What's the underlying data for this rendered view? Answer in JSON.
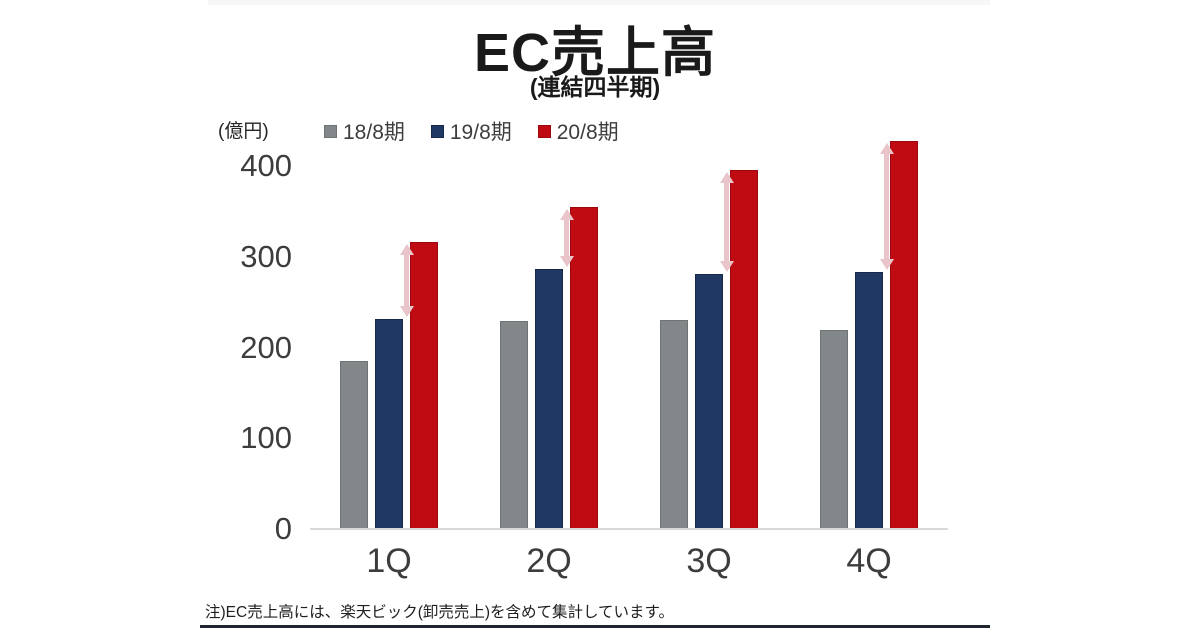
{
  "slide": {
    "title": "EC売上高",
    "subtitle": "(連結四半期)",
    "unit_label": "(億円)",
    "note": "注)EC売上高には、楽天ビック(卸売売上)を含めて集計しています。"
  },
  "colors": {
    "background": "#ffffff",
    "top_strip": "#f7f7f7",
    "title_text": "#1a1a1a",
    "tick_text": "#3d3d3d",
    "axis_line": "#d9d9d9",
    "bottom_rule": "#20242e"
  },
  "chart_data": {
    "type": "bar",
    "title": "EC売上高(連結四半期)",
    "categories": [
      "1Q",
      "2Q",
      "3Q",
      "4Q"
    ],
    "series": [
      {
        "name": "18/8期",
        "color": "#828789",
        "border": "#6e7374",
        "values": [
          185,
          229,
          230,
          219
        ]
      },
      {
        "name": "19/8期",
        "color": "#1f3864",
        "border": "#16294d",
        "values": [
          231,
          286,
          281,
          283
        ]
      },
      {
        "name": "20/8期",
        "color": "#c00b13",
        "border": "#9c070e",
        "values": [
          316,
          355,
          396,
          427
        ]
      }
    ],
    "ylabel": "(億円)",
    "yticks": [
      0,
      100,
      200,
      300,
      400
    ],
    "ylim": [
      0,
      440
    ],
    "grid": false,
    "legend_position": "top",
    "annotations": {
      "growth_arrows": {
        "description": "light pink double-headed vertical arrows between 19/8期 bar top and 20/8期 bar top in every quarter",
        "from_series": "19/8期",
        "to_series": "20/8期",
        "color": "#e9c4c9"
      }
    }
  }
}
